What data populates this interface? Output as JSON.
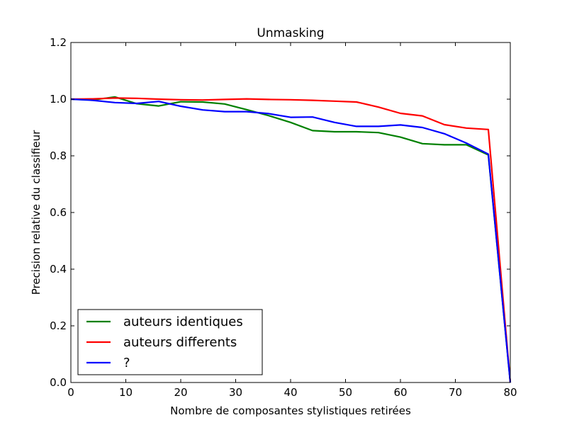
{
  "chart_data": {
    "type": "line",
    "title": "Unmasking",
    "xlabel": "Nombre de composantes stylistiques retirées",
    "ylabel": "Precision relative du classifieur",
    "xlim": [
      0,
      80
    ],
    "ylim": [
      0,
      1.2
    ],
    "xticks": [
      "0",
      "10",
      "20",
      "30",
      "40",
      "50",
      "60",
      "70",
      "80"
    ],
    "yticks": [
      "0.0",
      "0.2",
      "0.4",
      "0.6",
      "0.8",
      "1.0",
      "1.2"
    ],
    "grid": false,
    "legend_position": "lower-left",
    "series": [
      {
        "name": "auteurs identiques",
        "color": "#008000",
        "x": [
          0,
          4,
          8,
          12,
          16,
          20,
          24,
          28,
          32,
          36,
          40,
          44,
          48,
          52,
          56,
          60,
          64,
          68,
          72,
          76,
          80
        ],
        "y": [
          1.0,
          0.997,
          1.008,
          0.984,
          0.976,
          0.991,
          0.99,
          0.983,
          0.963,
          0.942,
          0.918,
          0.889,
          0.885,
          0.885,
          0.882,
          0.866,
          0.843,
          0.839,
          0.839,
          0.803,
          0.0
        ]
      },
      {
        "name": "auteurs differents",
        "color": "#ff0000",
        "x": [
          0,
          4,
          8,
          12,
          16,
          20,
          24,
          28,
          32,
          36,
          40,
          44,
          48,
          52,
          56,
          60,
          64,
          68,
          72,
          76,
          80
        ],
        "y": [
          1.0,
          1.001,
          1.004,
          1.003,
          1.0,
          0.998,
          0.997,
          0.999,
          1.001,
          0.999,
          0.998,
          0.996,
          0.993,
          0.99,
          0.972,
          0.95,
          0.941,
          0.91,
          0.898,
          0.893,
          0.0
        ]
      },
      {
        "name": "?",
        "color": "#0000ff",
        "x": [
          0,
          4,
          8,
          12,
          16,
          20,
          24,
          28,
          32,
          36,
          40,
          44,
          48,
          52,
          56,
          60,
          64,
          68,
          72,
          76,
          80
        ],
        "y": [
          1.0,
          0.996,
          0.988,
          0.985,
          0.992,
          0.975,
          0.962,
          0.956,
          0.956,
          0.949,
          0.936,
          0.937,
          0.918,
          0.904,
          0.904,
          0.909,
          0.9,
          0.878,
          0.845,
          0.806,
          0.0
        ]
      }
    ]
  }
}
